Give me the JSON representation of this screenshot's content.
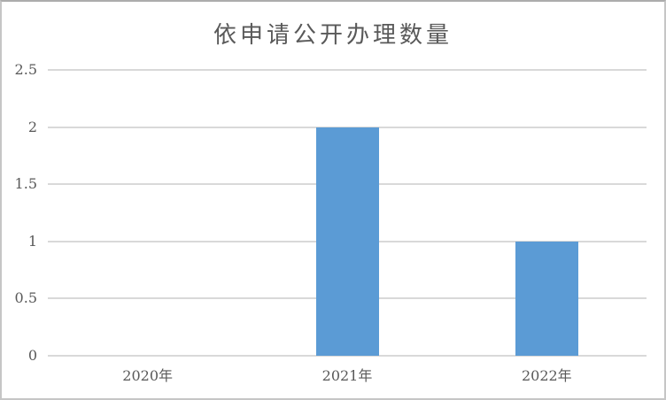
{
  "chart_data": {
    "type": "bar",
    "title": "依申请公开办理数量",
    "categories": [
      "2020年",
      "2021年",
      "2022年"
    ],
    "values": [
      0,
      2,
      1
    ],
    "ylim": [
      0,
      2.5
    ],
    "yticks": [
      "0",
      "0.5",
      "1",
      "1.5",
      "2",
      "2.5"
    ],
    "xlabel": "",
    "ylabel": "",
    "legend": "none",
    "grid": "horizontal",
    "colors": {
      "bar": "#5B9BD5",
      "gridline": "#D9D9D9",
      "text": "#595959",
      "frame_border": "#C6C6C6",
      "background": "#FFFFFF"
    }
  }
}
